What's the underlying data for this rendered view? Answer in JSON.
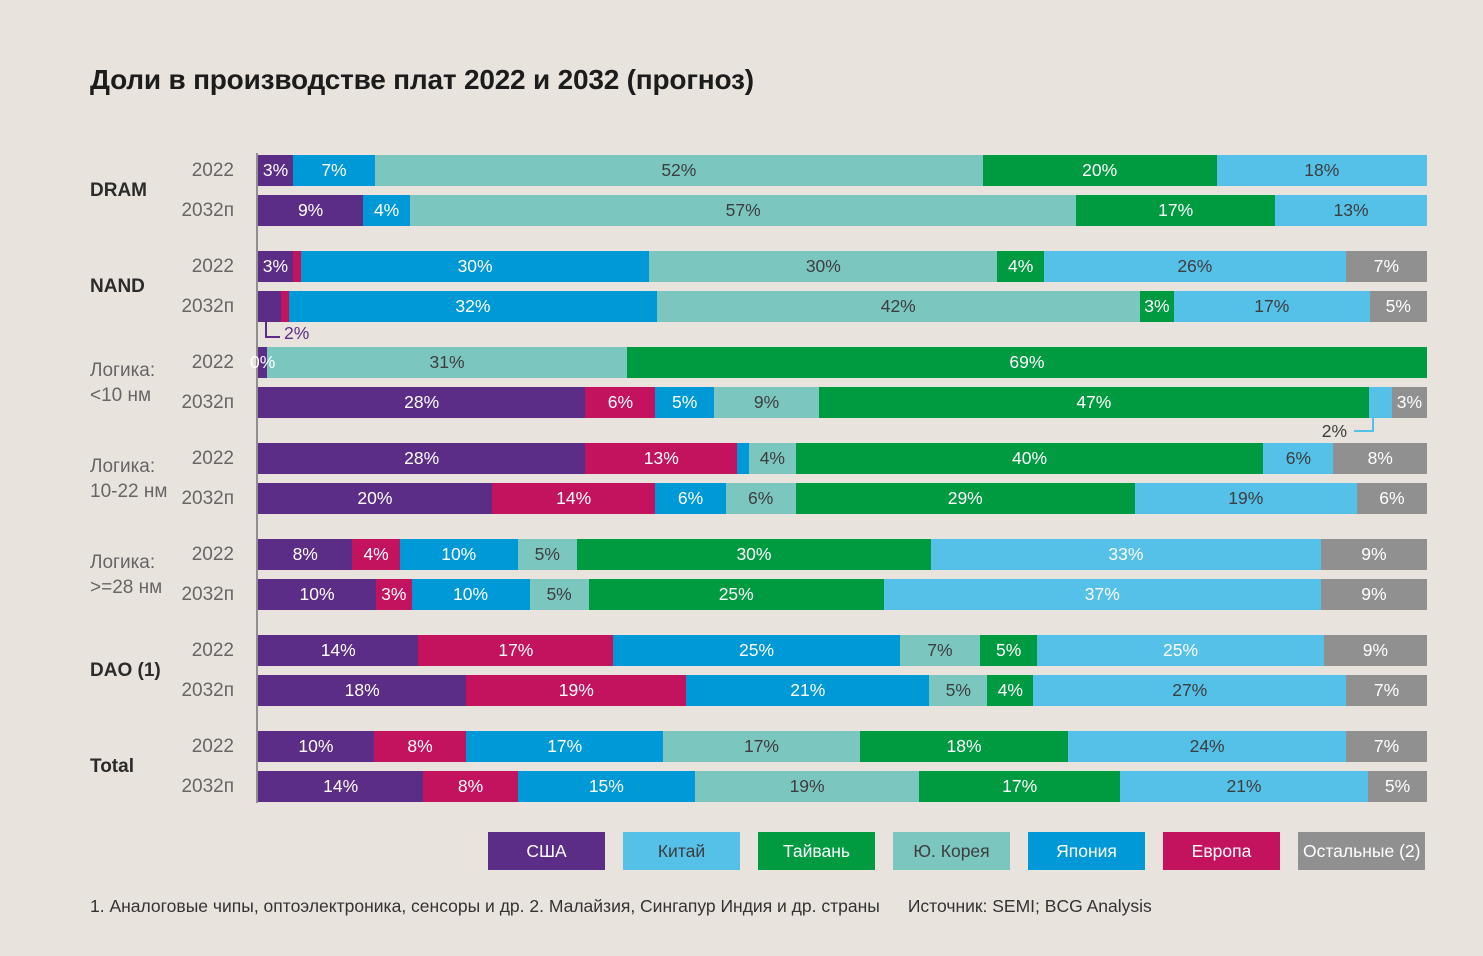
{
  "title": "Доли в производстве плат 2022 и 2032 (прогноз)",
  "footnote": {
    "note": "1. Аналоговые чипы, оптоэлектроника, сенсоры и др. 2. Малайзия, Сингапур Индия и др. страны",
    "source": "Источник: SEMI; BCG Analysis"
  },
  "colors": {
    "background": "#e9e3dd",
    "axis_line": "#8f8f8f",
    "dark_value_text": "#3d3d3d",
    "row_label_gray": "#666666",
    "group_label_dark": "#2b2b2b",
    "title_text": "#1c1c1c"
  },
  "legend": {
    "items": [
      {
        "key": "usa",
        "label": "США",
        "color": "#5c2d86",
        "text_color": "#ffffff"
      },
      {
        "key": "china",
        "label": "Китай",
        "color": "#55c1e9",
        "text_color": "#3d3d3d"
      },
      {
        "key": "taiwan",
        "label": "Тайвань",
        "color": "#009b41",
        "text_color": "#ffffff"
      },
      {
        "key": "skorea",
        "label": "Ю. Корея",
        "color": "#7cc6c0",
        "text_color": "#3d3d3d"
      },
      {
        "key": "japan",
        "label": "Япония",
        "color": "#0099d8",
        "text_color": "#ffffff"
      },
      {
        "key": "europe",
        "label": "Европа",
        "color": "#c3135f",
        "text_color": "#ffffff"
      },
      {
        "key": "others",
        "label": "Остальные (2)",
        "color": "#909090",
        "text_color": "#ffffff"
      }
    ]
  },
  "chart_data": {
    "type": "bar",
    "stacked": true,
    "orientation": "horizontal",
    "unit": "%",
    "xlim": [
      0,
      100
    ],
    "grid": false,
    "legend_position": "bottom",
    "groups": [
      {
        "id": "dram",
        "label_lines": [
          "DRAM"
        ],
        "emphasis": true,
        "rows": [
          {
            "year": "2022",
            "segments": [
              {
                "key": "usa",
                "value": 3,
                "label": "3%"
              },
              {
                "key": "japan",
                "value": 7,
                "label": "7%"
              },
              {
                "key": "skorea",
                "value": 52,
                "label": "52%"
              },
              {
                "key": "taiwan",
                "value": 20,
                "label": "20%"
              },
              {
                "key": "china",
                "value": 18,
                "label": "18%"
              }
            ]
          },
          {
            "year": "2032п",
            "segments": [
              {
                "key": "usa",
                "value": 9,
                "label": "9%"
              },
              {
                "key": "japan",
                "value": 4,
                "label": "4%"
              },
              {
                "key": "skorea",
                "value": 57,
                "label": "57%"
              },
              {
                "key": "taiwan",
                "value": 17,
                "label": "17%"
              },
              {
                "key": "china",
                "value": 13,
                "label": "13%"
              }
            ]
          }
        ]
      },
      {
        "id": "nand",
        "label_lines": [
          "NAND"
        ],
        "emphasis": true,
        "rows": [
          {
            "year": "2022",
            "segments": [
              {
                "key": "usa",
                "value": 3,
                "label": "3%"
              },
              {
                "key": "europe",
                "value": 0.7,
                "label": ""
              },
              {
                "key": "japan",
                "value": 30,
                "label": "30%"
              },
              {
                "key": "skorea",
                "value": 30,
                "label": "30%"
              },
              {
                "key": "taiwan",
                "value": 4,
                "label": "4%"
              },
              {
                "key": "china",
                "value": 26,
                "label": "26%"
              },
              {
                "key": "others",
                "value": 7,
                "label": "7%"
              }
            ]
          },
          {
            "year": "2032п",
            "segments": [
              {
                "key": "usa",
                "value": 2,
                "label": ""
              },
              {
                "key": "europe",
                "value": 0.7,
                "label": ""
              },
              {
                "key": "japan",
                "value": 32,
                "label": "32%"
              },
              {
                "key": "skorea",
                "value": 42,
                "label": "42%"
              },
              {
                "key": "taiwan",
                "value": 3,
                "label": "3%"
              },
              {
                "key": "china",
                "value": 17,
                "label": "17%"
              },
              {
                "key": "others",
                "value": 5,
                "label": "5%"
              }
            ],
            "callout": {
              "side": "left",
              "label": "2%",
              "pos": 0.6,
              "line_color": "#5c2d86",
              "text_color": "#5c2d86"
            }
          }
        ]
      },
      {
        "id": "logic-sub10",
        "label_lines": [
          "Логика:",
          "<10 нм"
        ],
        "emphasis": false,
        "rows": [
          {
            "year": "2022",
            "segments": [
              {
                "key": "usa",
                "value": 0.8,
                "label": "0%"
              },
              {
                "key": "skorea",
                "value": 31,
                "label": "31%"
              },
              {
                "key": "taiwan",
                "value": 69,
                "label": "69%"
              }
            ]
          },
          {
            "year": "2032п",
            "segments": [
              {
                "key": "usa",
                "value": 28,
                "label": "28%"
              },
              {
                "key": "europe",
                "value": 6,
                "label": "6%"
              },
              {
                "key": "japan",
                "value": 5,
                "label": "5%"
              },
              {
                "key": "skorea",
                "value": 9,
                "label": "9%"
              },
              {
                "key": "taiwan",
                "value": 47,
                "label": "47%"
              },
              {
                "key": "china",
                "value": 2,
                "label": ""
              },
              {
                "key": "others",
                "value": 3,
                "label": "3%"
              }
            ],
            "callout": {
              "side": "right",
              "label": "2%",
              "pos": 91,
              "line_color": "#55c1e9",
              "text_color": "#3d3d3d"
            }
          }
        ]
      },
      {
        "id": "logic-10-22",
        "label_lines": [
          "Логика:",
          "10-22 нм"
        ],
        "emphasis": false,
        "rows": [
          {
            "year": "2022",
            "segments": [
              {
                "key": "usa",
                "value": 28,
                "label": "28%"
              },
              {
                "key": "europe",
                "value": 13,
                "label": "13%"
              },
              {
                "key": "japan",
                "value": 1,
                "label": ""
              },
              {
                "key": "skorea",
                "value": 4,
                "label": "4%"
              },
              {
                "key": "taiwan",
                "value": 40,
                "label": "40%"
              },
              {
                "key": "china",
                "value": 6,
                "label": "6%"
              },
              {
                "key": "others",
                "value": 8,
                "label": "8%"
              }
            ]
          },
          {
            "year": "2032п",
            "segments": [
              {
                "key": "usa",
                "value": 20,
                "label": "20%"
              },
              {
                "key": "europe",
                "value": 14,
                "label": "14%"
              },
              {
                "key": "japan",
                "value": 6,
                "label": "6%"
              },
              {
                "key": "skorea",
                "value": 6,
                "label": "6%"
              },
              {
                "key": "taiwan",
                "value": 29,
                "label": "29%"
              },
              {
                "key": "china",
                "value": 19,
                "label": "19%"
              },
              {
                "key": "others",
                "value": 6,
                "label": "6%"
              }
            ]
          }
        ]
      },
      {
        "id": "logic-28plus",
        "label_lines": [
          "Логика:",
          ">=28 нм"
        ],
        "emphasis": false,
        "rows": [
          {
            "year": "2022",
            "segments": [
              {
                "key": "usa",
                "value": 8,
                "label": "8%"
              },
              {
                "key": "europe",
                "value": 4,
                "label": "4%"
              },
              {
                "key": "japan",
                "value": 10,
                "label": "10%"
              },
              {
                "key": "skorea",
                "value": 5,
                "label": "5%"
              },
              {
                "key": "taiwan",
                "value": 30,
                "label": "30%"
              },
              {
                "key": "china",
                "value": 33,
                "label": "33%",
                "text_color": "#ffffff"
              },
              {
                "key": "others",
                "value": 9,
                "label": "9%"
              }
            ]
          },
          {
            "year": "2032п",
            "segments": [
              {
                "key": "usa",
                "value": 10,
                "label": "10%"
              },
              {
                "key": "europe",
                "value": 3,
                "label": "3%"
              },
              {
                "key": "japan",
                "value": 10,
                "label": "10%"
              },
              {
                "key": "skorea",
                "value": 5,
                "label": "5%"
              },
              {
                "key": "taiwan",
                "value": 25,
                "label": "25%"
              },
              {
                "key": "china",
                "value": 37,
                "label": "37%",
                "text_color": "#ffffff"
              },
              {
                "key": "others",
                "value": 9,
                "label": "9%"
              }
            ]
          }
        ]
      },
      {
        "id": "dao",
        "label_lines": [
          "DAO (1)"
        ],
        "emphasis": true,
        "rows": [
          {
            "year": "2022",
            "segments": [
              {
                "key": "usa",
                "value": 14,
                "label": "14%"
              },
              {
                "key": "europe",
                "value": 17,
                "label": "17%"
              },
              {
                "key": "japan",
                "value": 25,
                "label": "25%"
              },
              {
                "key": "skorea",
                "value": 7,
                "label": "7%"
              },
              {
                "key": "taiwan",
                "value": 5,
                "label": "5%"
              },
              {
                "key": "china",
                "value": 25,
                "label": "25%",
                "text_color": "#ffffff"
              },
              {
                "key": "others",
                "value": 9,
                "label": "9%"
              }
            ]
          },
          {
            "year": "2032п",
            "segments": [
              {
                "key": "usa",
                "value": 18,
                "label": "18%"
              },
              {
                "key": "europe",
                "value": 19,
                "label": "19%"
              },
              {
                "key": "japan",
                "value": 21,
                "label": "21%"
              },
              {
                "key": "skorea",
                "value": 5,
                "label": "5%"
              },
              {
                "key": "taiwan",
                "value": 4,
                "label": "4%"
              },
              {
                "key": "china",
                "value": 27,
                "label": "27%"
              },
              {
                "key": "others",
                "value": 7,
                "label": "7%"
              }
            ]
          }
        ]
      },
      {
        "id": "total",
        "label_lines": [
          "Total"
        ],
        "emphasis": true,
        "rows": [
          {
            "year": "2022",
            "segments": [
              {
                "key": "usa",
                "value": 10,
                "label": "10%"
              },
              {
                "key": "europe",
                "value": 8,
                "label": "8%"
              },
              {
                "key": "japan",
                "value": 17,
                "label": "17%"
              },
              {
                "key": "skorea",
                "value": 17,
                "label": "17%"
              },
              {
                "key": "taiwan",
                "value": 18,
                "label": "18%"
              },
              {
                "key": "china",
                "value": 24,
                "label": "24%"
              },
              {
                "key": "others",
                "value": 7,
                "label": "7%"
              }
            ]
          },
          {
            "year": "2032п",
            "segments": [
              {
                "key": "usa",
                "value": 14,
                "label": "14%"
              },
              {
                "key": "europe",
                "value": 8,
                "label": "8%"
              },
              {
                "key": "japan",
                "value": 15,
                "label": "15%"
              },
              {
                "key": "skorea",
                "value": 19,
                "label": "19%"
              },
              {
                "key": "taiwan",
                "value": 17,
                "label": "17%"
              },
              {
                "key": "china",
                "value": 21,
                "label": "21%"
              },
              {
                "key": "others",
                "value": 5,
                "label": "5%"
              }
            ]
          }
        ]
      }
    ]
  }
}
